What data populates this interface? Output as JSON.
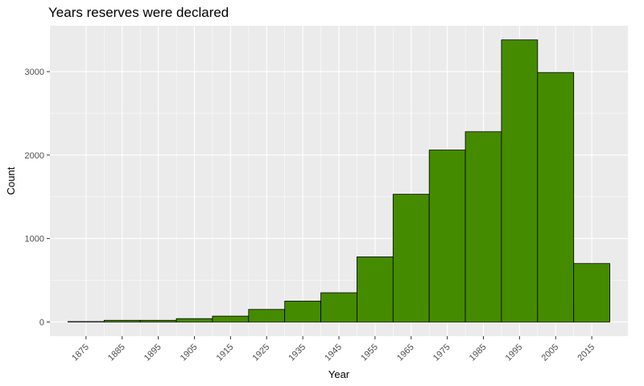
{
  "chart_data": {
    "type": "bar",
    "title": "Years reserves were declared",
    "xlabel": "Year",
    "ylabel": "Count",
    "bin_width": 10,
    "bins": [
      {
        "start": 1870,
        "end": 1880,
        "value": 5
      },
      {
        "start": 1880,
        "end": 1890,
        "value": 20
      },
      {
        "start": 1890,
        "end": 1900,
        "value": 20
      },
      {
        "start": 1900,
        "end": 1910,
        "value": 40
      },
      {
        "start": 1910,
        "end": 1920,
        "value": 70
      },
      {
        "start": 1920,
        "end": 1930,
        "value": 150
      },
      {
        "start": 1930,
        "end": 1940,
        "value": 250
      },
      {
        "start": 1940,
        "end": 1950,
        "value": 350
      },
      {
        "start": 1950,
        "end": 1960,
        "value": 780
      },
      {
        "start": 1960,
        "end": 1970,
        "value": 1530
      },
      {
        "start": 1970,
        "end": 1980,
        "value": 2060
      },
      {
        "start": 1980,
        "end": 1990,
        "value": 2280
      },
      {
        "start": 1990,
        "end": 2000,
        "value": 3380
      },
      {
        "start": 2000,
        "end": 2010,
        "value": 2990
      },
      {
        "start": 2010,
        "end": 2020,
        "value": 700
      }
    ],
    "x_ticks": [
      "1875",
      "1885",
      "1895",
      "1905",
      "1915",
      "1925",
      "1935",
      "1945",
      "1955",
      "1965",
      "1975",
      "1985",
      "1995",
      "2005",
      "2015"
    ],
    "y_ticks": [
      0,
      1000,
      2000,
      3000
    ],
    "xlim": [
      1865,
      2025
    ],
    "ylim": [
      -170,
      3550
    ],
    "grid": true,
    "bar_color": "#458b00",
    "bar_outline": "#000000",
    "panel_color": "#ebebeb",
    "grid_color": "#ffffff"
  }
}
